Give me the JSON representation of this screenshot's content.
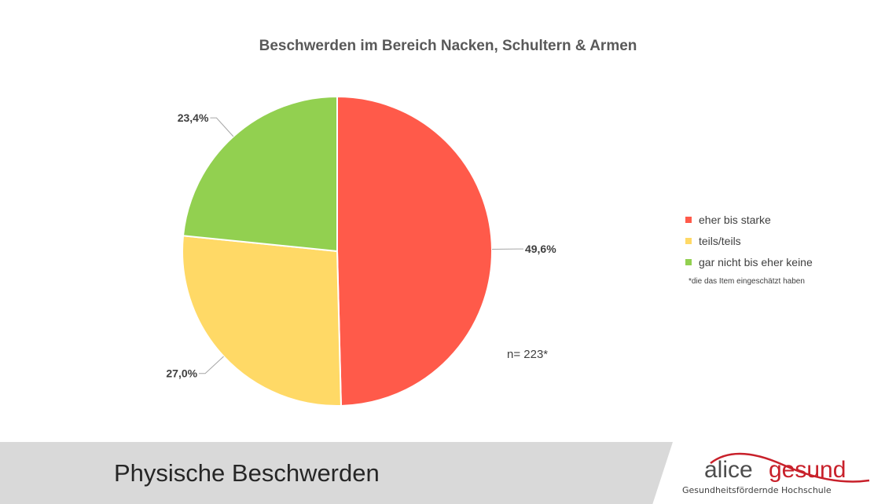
{
  "chart_data": {
    "type": "pie",
    "title": "Beschwerden im Bereich Nacken, Schultern & Armen",
    "categories": [
      "eher bis starke",
      "teils/teils",
      "gar nicht bis eher keine"
    ],
    "values": [
      49.6,
      27.0,
      23.4
    ],
    "data_labels": [
      "49,6%",
      "27,0%",
      "23,4%"
    ],
    "colors": [
      "#ff5a4a",
      "#ffd966",
      "#92d050"
    ],
    "legend_position": "right",
    "legend_note": "*die das Item eingeschätzt haben",
    "annotation": "n= 223*"
  },
  "footer": {
    "section_title": "Physische Beschwerden",
    "logo_word1": "alice",
    "logo_word2": "gesund",
    "logo_tagline": "Gesundheitsfördernde Hochschule"
  }
}
